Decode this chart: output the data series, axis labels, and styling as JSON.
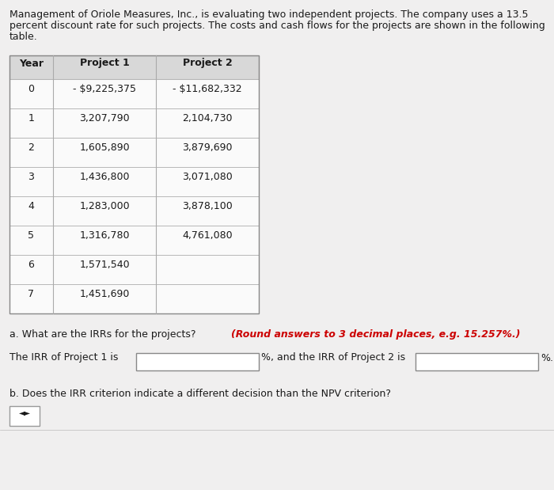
{
  "intro_lines": [
    "Management of Oriole Measures, Inc., is evaluating two independent projects. The company uses a 13.5",
    "percent discount rate for such projects. The costs and cash flows for the projects are shown in the following",
    "table."
  ],
  "table_header": [
    "Year",
    "Project 1",
    "Project 2"
  ],
  "table_data": [
    [
      "0",
      "- $9,225,375",
      "- $11,682,332"
    ],
    [
      "1",
      "3,207,790",
      "2,104,730"
    ],
    [
      "2",
      "1,605,890",
      "3,879,690"
    ],
    [
      "3",
      "1,436,800",
      "3,071,080"
    ],
    [
      "4",
      "1,283,000",
      "3,878,100"
    ],
    [
      "5",
      "1,316,780",
      "4,761,080"
    ],
    [
      "6",
      "1,571,540",
      ""
    ],
    [
      "7",
      "1,451,690",
      ""
    ]
  ],
  "question_a_normal": "a. What are the IRRs for the projects? ",
  "question_a_bold_italic": "(Round answers to 3 decimal places, e.g. 15.257%.)",
  "irr_label1": "The IRR of Project 1 is",
  "irr_label2": "%, and the IRR of Project 2 is",
  "irr_label3": "%.",
  "question_b": "b. Does the IRR criterion indicate a different decision than the NPV criterion?",
  "bg_color": "#f0efef",
  "table_header_bg": "#d8d8d8",
  "table_row_bg": "#fafafa",
  "border_color": "#aaaaaa",
  "text_color": "#1a1a1a",
  "red_color": "#cc0000",
  "input_bg": "#ffffff",
  "intro_fontsize": 9.0,
  "table_fontsize": 9.0,
  "question_fontsize": 9.0
}
